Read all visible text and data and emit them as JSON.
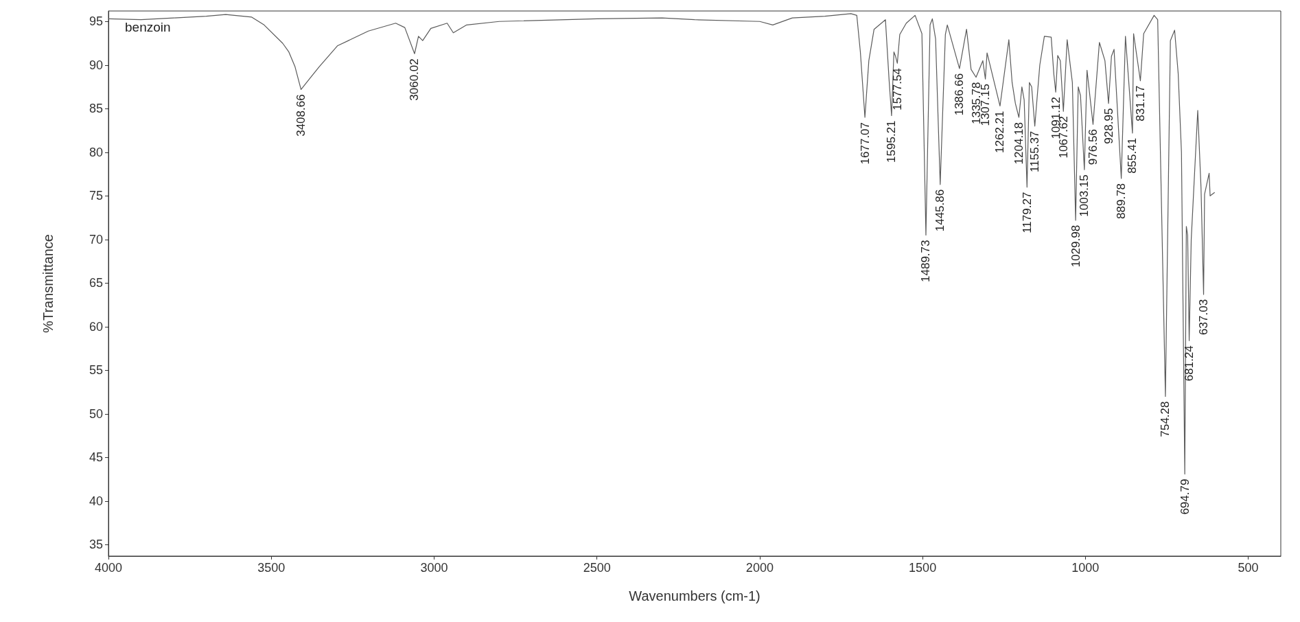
{
  "chart_data": {
    "type": "line",
    "xlabel": "Wavenumbers (cm-1)",
    "ylabel": "%Transmittance",
    "x": [
      4000,
      3900,
      3800,
      3700,
      3640,
      3560,
      3522,
      3465,
      3446,
      3427,
      3408.66,
      3381,
      3353,
      3297,
      3202,
      3118,
      3090,
      3060.02,
      3048,
      3035,
      3010,
      2960,
      2941,
      2900,
      2800,
      2500,
      2300,
      2200,
      2000,
      1960,
      1900,
      1800,
      1720,
      1702,
      1691,
      1677.07,
      1665,
      1649,
      1614,
      1603,
      1595.21,
      1588,
      1583,
      1577.54,
      1570,
      1550,
      1523,
      1502,
      1489.73,
      1477,
      1470,
      1460,
      1445.86,
      1430,
      1424,
      1386.66,
      1365,
      1351,
      1335.78,
      1315,
      1307.15,
      1302,
      1262.21,
      1235,
      1225,
      1215,
      1204.18,
      1195,
      1188,
      1179.27,
      1172,
      1165,
      1155.37,
      1140,
      1126,
      1105,
      1097,
      1091.12,
      1085,
      1077,
      1067.62,
      1056,
      1040,
      1029.98,
      1022,
      1015,
      1003.15,
      995,
      976.56,
      957,
      940,
      928.95,
      920,
      912,
      889.78,
      877,
      855.41,
      852,
      831.17,
      821,
      789,
      778,
      754.28,
      739,
      726,
      715,
      705,
      694.79,
      690,
      686,
      681.24,
      675,
      655,
      645,
      637.03,
      634,
      620,
      617,
      603
    ],
    "values": [
      95.3,
      95.2,
      95.4,
      95.6,
      95.8,
      95.5,
      94.6,
      92.5,
      91.5,
      89.8,
      87.2,
      88.5,
      89.8,
      92.2,
      93.9,
      94.8,
      94.3,
      91.3,
      93.3,
      92.8,
      94.2,
      94.8,
      93.7,
      94.6,
      95.0,
      95.3,
      95.4,
      95.2,
      95.0,
      94.6,
      95.4,
      95.6,
      95.9,
      95.7,
      91.5,
      84.0,
      90.5,
      94.1,
      95.2,
      88.4,
      84.2,
      91.5,
      91.0,
      90.2,
      93.5,
      94.8,
      95.7,
      93.6,
      70.5,
      94.6,
      95.3,
      93.0,
      76.3,
      93.5,
      94.6,
      89.6,
      94.1,
      89.5,
      88.6,
      90.5,
      88.4,
      91.4,
      85.3,
      92.9,
      88.0,
      85.6,
      84.0,
      87.5,
      86.0,
      76.0,
      88.0,
      87.5,
      83.0,
      90.0,
      93.3,
      93.2,
      89.0,
      86.9,
      91.1,
      90.5,
      84.7,
      92.9,
      88.0,
      72.2,
      87.5,
      86.5,
      78.0,
      89.4,
      83.2,
      92.6,
      90.5,
      85.6,
      91.0,
      91.8,
      77.0,
      93.3,
      82.2,
      93.6,
      88.2,
      93.6,
      95.7,
      95.2,
      52.0,
      92.8,
      94.0,
      89.0,
      80.0,
      43.1,
      71.5,
      70.5,
      58.4,
      70.0,
      84.8,
      76.0,
      63.7,
      75.2,
      77.6,
      75.0,
      75.4
    ],
    "color": "#5a5a5a",
    "xlim": [
      4000,
      400
    ],
    "xticks": [
      4000,
      3500,
      3000,
      2500,
      2000,
      1500,
      1000,
      500
    ],
    "ylim": [
      33.7,
      96.2
    ],
    "yticks": [
      35,
      40,
      45,
      50,
      55,
      60,
      65,
      70,
      75,
      80,
      85,
      90,
      95
    ],
    "grid": false,
    "marker": "none",
    "line_style": "solid",
    "annotations": [
      "benzoin",
      {
        "text": "3408.66",
        "x": 3408.66,
        "y": 87.2
      },
      {
        "text": "3060.02",
        "x": 3060.02,
        "y": 91.3
      },
      {
        "text": "1677.07",
        "x": 1677.07,
        "y": 84.0
      },
      {
        "text": "1595.21",
        "x": 1595.21,
        "y": 84.2
      },
      {
        "text": "1577.54",
        "x": 1577.54,
        "y": 90.2
      },
      {
        "text": "1489.73",
        "x": 1489.73,
        "y": 70.5
      },
      {
        "text": "1445.86",
        "x": 1445.86,
        "y": 76.3
      },
      {
        "text": "1386.66",
        "x": 1386.66,
        "y": 89.6
      },
      {
        "text": "1335.78",
        "x": 1335.78,
        "y": 88.6
      },
      {
        "text": "1307.15",
        "x": 1307.15,
        "y": 88.4
      },
      {
        "text": "1262.21",
        "x": 1262.21,
        "y": 85.3
      },
      {
        "text": "1204.18",
        "x": 1204.18,
        "y": 84.0
      },
      {
        "text": "1179.27",
        "x": 1179.27,
        "y": 76.0
      },
      {
        "text": "1155.37",
        "x": 1155.37,
        "y": 83.0
      },
      {
        "text": "1091.12",
        "x": 1091.12,
        "y": 86.9
      },
      {
        "text": "1067.62",
        "x": 1067.62,
        "y": 84.7
      },
      {
        "text": "1029.98",
        "x": 1029.98,
        "y": 72.2
      },
      {
        "text": "1003.15",
        "x": 1003.15,
        "y": 78.0
      },
      {
        "text": "976.56",
        "x": 976.56,
        "y": 83.2
      },
      {
        "text": "928.95",
        "x": 928.95,
        "y": 85.6
      },
      {
        "text": "889.78",
        "x": 889.78,
        "y": 77.0
      },
      {
        "text": "855.41",
        "x": 855.41,
        "y": 82.2
      },
      {
        "text": "831.17",
        "x": 831.17,
        "y": 88.2
      },
      {
        "text": "754.28",
        "x": 754.28,
        "y": 52.0
      },
      {
        "text": "694.79",
        "x": 694.79,
        "y": 43.1
      },
      {
        "text": "681.24",
        "x": 681.24,
        "y": 58.4
      },
      {
        "text": "637.03",
        "x": 637.03,
        "y": 63.7
      }
    ]
  }
}
